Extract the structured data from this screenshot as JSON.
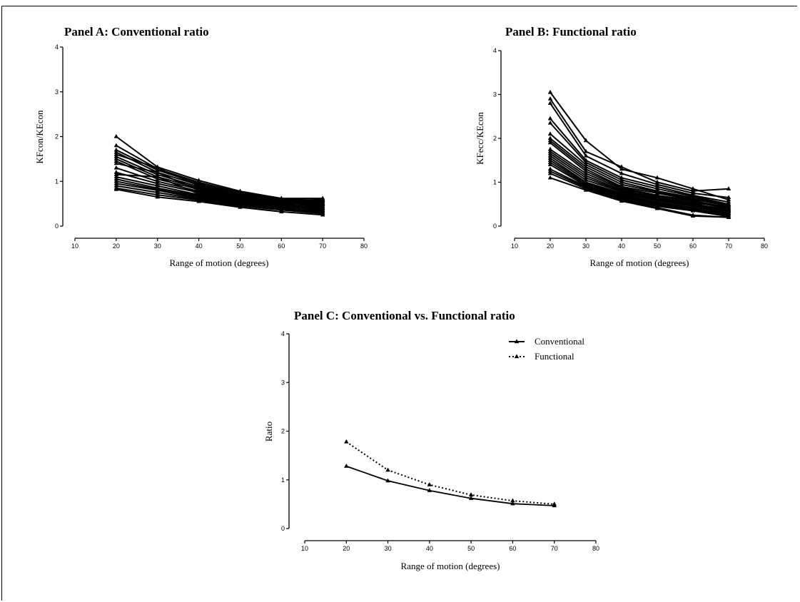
{
  "chart_data": [
    {
      "type": "line",
      "title": "Panel A: Conventional ratio",
      "xlabel": "Range of motion (degrees)",
      "ylabel": "KFcon/KEcon",
      "xlim": [
        10,
        80
      ],
      "ylim": [
        0,
        4
      ],
      "xticks": [
        "10",
        "20",
        "30",
        "40",
        "50",
        "60",
        "70",
        "80"
      ],
      "yticks": [
        "0",
        "1",
        "2",
        "3",
        "4"
      ],
      "x": [
        20,
        30,
        40,
        50,
        60,
        70
      ],
      "series": [
        {
          "values": [
            2.0,
            1.32,
            1.02,
            0.78,
            0.62,
            0.62
          ]
        },
        {
          "values": [
            1.8,
            1.28,
            0.98,
            0.75,
            0.6,
            0.58
          ]
        },
        {
          "values": [
            1.7,
            1.25,
            0.95,
            0.72,
            0.58,
            0.56
          ]
        },
        {
          "values": [
            1.65,
            1.2,
            0.92,
            0.7,
            0.57,
            0.52
          ]
        },
        {
          "values": [
            1.6,
            1.3,
            0.9,
            0.68,
            0.55,
            0.6
          ]
        },
        {
          "values": [
            1.55,
            1.15,
            0.88,
            0.66,
            0.54,
            0.5
          ]
        },
        {
          "values": [
            1.5,
            1.1,
            0.85,
            0.65,
            0.52,
            0.48
          ]
        },
        {
          "values": [
            1.45,
            1.05,
            0.82,
            0.63,
            0.5,
            0.55
          ]
        },
        {
          "values": [
            1.4,
            1.2,
            0.8,
            0.62,
            0.5,
            0.45
          ]
        },
        {
          "values": [
            1.3,
            1.0,
            0.78,
            0.6,
            0.48,
            0.5
          ]
        },
        {
          "values": [
            1.2,
            0.95,
            0.75,
            0.58,
            0.47,
            0.42
          ]
        },
        {
          "values": [
            1.15,
            1.1,
            0.72,
            0.57,
            0.46,
            0.4
          ]
        },
        {
          "values": [
            1.1,
            0.9,
            0.7,
            0.55,
            0.45,
            0.38
          ]
        },
        {
          "values": [
            1.05,
            0.85,
            0.68,
            0.53,
            0.43,
            0.45
          ]
        },
        {
          "values": [
            1.0,
            0.82,
            0.65,
            0.52,
            0.42,
            0.35
          ]
        },
        {
          "values": [
            0.95,
            0.8,
            0.62,
            0.5,
            0.4,
            0.3
          ]
        },
        {
          "values": [
            0.9,
            0.75,
            0.6,
            0.48,
            0.38,
            0.33
          ]
        },
        {
          "values": [
            0.85,
            0.7,
            0.58,
            0.45,
            0.36,
            0.28
          ]
        },
        {
          "values": [
            0.82,
            0.65,
            0.55,
            0.42,
            0.32,
            0.25
          ]
        }
      ]
    },
    {
      "type": "line",
      "title": "Panel B: Functional ratio",
      "xlabel": "Range of motion (degrees)",
      "ylabel": "KFecc/KEcon",
      "xlim": [
        10,
        80
      ],
      "ylim": [
        0,
        4
      ],
      "xticks": [
        "10",
        "20",
        "30",
        "40",
        "50",
        "60",
        "70",
        "80"
      ],
      "yticks": [
        "0",
        "1",
        "2",
        "3",
        "4"
      ],
      "x": [
        20,
        30,
        40,
        50,
        60,
        70
      ],
      "series": [
        {
          "values": [
            3.05,
            1.95,
            1.3,
            1.1,
            0.85,
            0.6
          ]
        },
        {
          "values": [
            2.9,
            1.7,
            1.35,
            1.0,
            0.8,
            0.85
          ]
        },
        {
          "values": [
            2.8,
            1.6,
            1.2,
            0.95,
            0.75,
            0.65
          ]
        },
        {
          "values": [
            2.45,
            1.5,
            1.1,
            0.9,
            0.7,
            0.55
          ]
        },
        {
          "values": [
            2.35,
            1.45,
            1.05,
            0.85,
            0.68,
            0.5
          ]
        },
        {
          "values": [
            2.1,
            1.4,
            1.0,
            0.8,
            0.65,
            0.48
          ]
        },
        {
          "values": [
            2.0,
            1.35,
            0.95,
            0.78,
            0.62,
            0.45
          ]
        },
        {
          "values": [
            1.95,
            1.3,
            0.9,
            0.75,
            0.6,
            0.5
          ]
        },
        {
          "values": [
            1.9,
            1.25,
            0.88,
            0.7,
            0.58,
            0.42
          ]
        },
        {
          "values": [
            1.75,
            1.2,
            0.85,
            0.68,
            0.55,
            0.4
          ]
        },
        {
          "values": [
            1.7,
            1.15,
            0.82,
            0.65,
            0.52,
            0.45
          ]
        },
        {
          "values": [
            1.65,
            1.1,
            0.8,
            0.62,
            0.5,
            0.38
          ]
        },
        {
          "values": [
            1.6,
            1.05,
            0.78,
            0.6,
            0.48,
            0.35
          ]
        },
        {
          "values": [
            1.55,
            1.0,
            0.75,
            0.58,
            0.45,
            0.33
          ]
        },
        {
          "values": [
            1.5,
            0.98,
            0.72,
            0.55,
            0.42,
            0.3
          ]
        },
        {
          "values": [
            1.45,
            0.95,
            0.7,
            0.52,
            0.4,
            0.36
          ]
        },
        {
          "values": [
            1.4,
            0.92,
            0.68,
            0.5,
            0.38,
            0.28
          ]
        },
        {
          "values": [
            1.3,
            0.9,
            0.65,
            0.48,
            0.36,
            0.25
          ]
        },
        {
          "values": [
            1.25,
            0.88,
            0.62,
            0.45,
            0.35,
            0.22
          ]
        },
        {
          "values": [
            1.2,
            0.85,
            0.6,
            0.42,
            0.25,
            0.2
          ]
        },
        {
          "values": [
            1.1,
            0.82,
            0.57,
            0.4,
            0.23,
            0.2
          ]
        }
      ]
    },
    {
      "type": "line",
      "title": "Panel C: Conventional vs. Functional ratio",
      "xlabel": "Range of motion (degrees)",
      "ylabel": "Ratio",
      "xlim": [
        10,
        80
      ],
      "ylim": [
        0,
        4
      ],
      "xticks": [
        "10",
        "20",
        "30",
        "40",
        "50",
        "60",
        "70",
        "80"
      ],
      "yticks": [
        "0",
        "1",
        "2",
        "3",
        "4"
      ],
      "legend_position": "top-right",
      "x": [
        20,
        30,
        40,
        50,
        60,
        70
      ],
      "series": [
        {
          "name": "Conventional",
          "style": "solid",
          "values": [
            1.28,
            0.98,
            0.78,
            0.62,
            0.51,
            0.47
          ]
        },
        {
          "name": "Functional",
          "style": "dotted",
          "values": [
            1.78,
            1.2,
            0.9,
            0.69,
            0.57,
            0.5
          ]
        }
      ]
    }
  ]
}
